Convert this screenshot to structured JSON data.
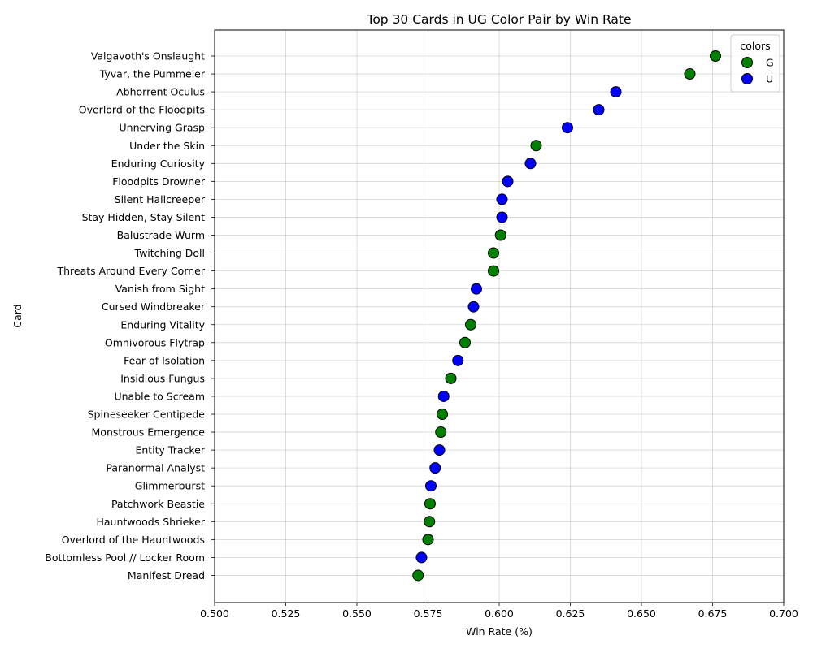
{
  "chart_data": {
    "type": "scatter",
    "title": "Top 30 Cards in UG Color Pair by Win Rate",
    "xlabel": "Win Rate (%)",
    "ylabel": "Card",
    "xlim": [
      0.5,
      0.7
    ],
    "xticks": [
      "0.500",
      "0.525",
      "0.550",
      "0.575",
      "0.600",
      "0.625",
      "0.650",
      "0.675",
      "0.700"
    ],
    "grid": true,
    "legend": {
      "title": "colors",
      "placement": "top-right",
      "entries": [
        {
          "label": "G",
          "color": "#008000"
        },
        {
          "label": "U",
          "color": "#0000ff"
        }
      ]
    },
    "cards": [
      {
        "name": "Valgavoth's Onslaught",
        "win_rate": 0.676,
        "color": "G"
      },
      {
        "name": "Tyvar, the Pummeler",
        "win_rate": 0.667,
        "color": "G"
      },
      {
        "name": "Abhorrent Oculus",
        "win_rate": 0.641,
        "color": "U"
      },
      {
        "name": "Overlord of the Floodpits",
        "win_rate": 0.635,
        "color": "U"
      },
      {
        "name": "Unnerving Grasp",
        "win_rate": 0.624,
        "color": "U"
      },
      {
        "name": "Under the Skin",
        "win_rate": 0.613,
        "color": "G"
      },
      {
        "name": "Enduring Curiosity",
        "win_rate": 0.611,
        "color": "U"
      },
      {
        "name": "Floodpits Drowner",
        "win_rate": 0.603,
        "color": "U"
      },
      {
        "name": "Silent Hallcreeper",
        "win_rate": 0.601,
        "color": "U"
      },
      {
        "name": "Stay Hidden, Stay Silent",
        "win_rate": 0.601,
        "color": "U"
      },
      {
        "name": "Balustrade Wurm",
        "win_rate": 0.6005,
        "color": "G"
      },
      {
        "name": "Twitching Doll",
        "win_rate": 0.598,
        "color": "G"
      },
      {
        "name": "Threats Around Every Corner",
        "win_rate": 0.598,
        "color": "G"
      },
      {
        "name": "Vanish from Sight",
        "win_rate": 0.592,
        "color": "U"
      },
      {
        "name": "Cursed Windbreaker",
        "win_rate": 0.591,
        "color": "U"
      },
      {
        "name": "Enduring Vitality",
        "win_rate": 0.59,
        "color": "G"
      },
      {
        "name": "Omnivorous Flytrap",
        "win_rate": 0.588,
        "color": "G"
      },
      {
        "name": "Fear of Isolation",
        "win_rate": 0.5855,
        "color": "U"
      },
      {
        "name": "Insidious Fungus",
        "win_rate": 0.583,
        "color": "G"
      },
      {
        "name": "Unable to Scream",
        "win_rate": 0.5805,
        "color": "U"
      },
      {
        "name": "Spineseeker Centipede",
        "win_rate": 0.58,
        "color": "G"
      },
      {
        "name": "Monstrous Emergence",
        "win_rate": 0.5795,
        "color": "G"
      },
      {
        "name": "Entity Tracker",
        "win_rate": 0.579,
        "color": "U"
      },
      {
        "name": "Paranormal Analyst",
        "win_rate": 0.5775,
        "color": "U"
      },
      {
        "name": "Glimmerburst",
        "win_rate": 0.576,
        "color": "U"
      },
      {
        "name": "Patchwork Beastie",
        "win_rate": 0.5757,
        "color": "G"
      },
      {
        "name": "Hauntwoods Shrieker",
        "win_rate": 0.5755,
        "color": "G"
      },
      {
        "name": "Overlord of the Hauntwoods",
        "win_rate": 0.575,
        "color": "G"
      },
      {
        "name": "Bottomless Pool // Locker Room",
        "win_rate": 0.5727,
        "color": "U"
      },
      {
        "name": "Manifest Dread",
        "win_rate": 0.5715,
        "color": "G"
      }
    ]
  }
}
